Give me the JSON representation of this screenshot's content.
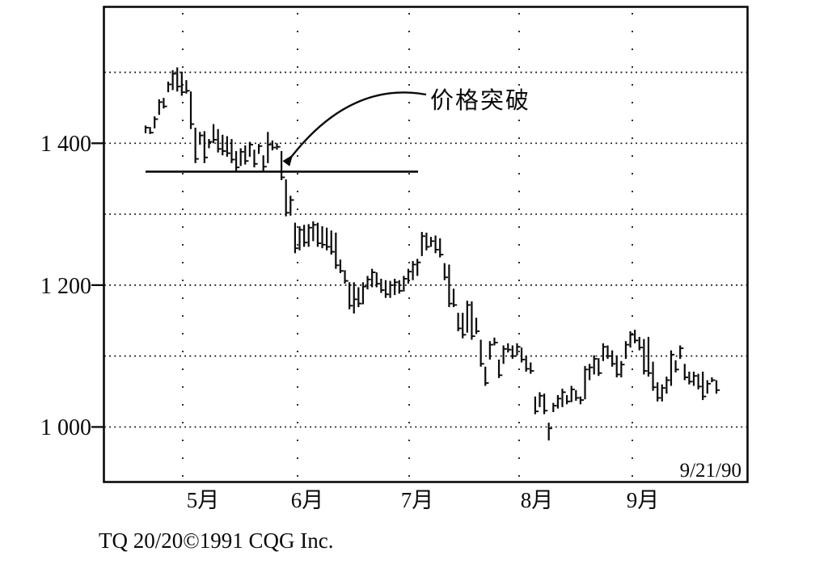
{
  "page": {
    "background": "#ffffff",
    "ink": "#0a0a0a"
  },
  "annotation": {
    "label": "价格突破",
    "points_to": "bar breaking below the support line"
  },
  "date_stamp": "9/21/90",
  "credit": "TQ 20/20©1991 CQG Inc.",
  "y_axis": {
    "labels": [
      {
        "value": 1400,
        "text": "1 400"
      },
      {
        "value": 1200,
        "text": "1 200"
      },
      {
        "value": 1000,
        "text": "1 000"
      }
    ]
  },
  "x_axis": {
    "labels": [
      {
        "text": "5月"
      },
      {
        "text": "6月"
      },
      {
        "text": "7月"
      },
      {
        "text": "8月"
      },
      {
        "text": "9月"
      }
    ]
  },
  "chart_data": {
    "type": "bar",
    "subtype": "hlc-daily-price-bars",
    "title": "",
    "xlabel": "",
    "ylabel": "",
    "categories": [
      "5月",
      "6月",
      "7月",
      "8月",
      "9月"
    ],
    "ylim": [
      921,
      1593
    ],
    "y_gridlines": [
      1500,
      1400,
      1300,
      1200,
      1100,
      1000
    ],
    "grid": "dotted",
    "support_line": {
      "value": 1360,
      "label": "价格突破"
    },
    "date_stamp": "9/21/90",
    "credit": "TQ 20/20©1991 CQG Inc.",
    "bars_format": [
      "high",
      "low",
      "close"
    ],
    "bars": [
      [
        1425,
        1414,
        1422
      ],
      [
        1423,
        1413,
        1415
      ],
      [
        1438,
        1421,
        1434
      ],
      [
        1462,
        1440,
        1458
      ],
      [
        1464,
        1449,
        1452
      ],
      [
        1487,
        1472,
        1483
      ],
      [
        1503,
        1475,
        1498
      ],
      [
        1507,
        1473,
        1480
      ],
      [
        1501,
        1467,
        1472
      ],
      [
        1489,
        1470,
        1474
      ],
      [
        1473,
        1420,
        1427
      ],
      [
        1422,
        1372,
        1378
      ],
      [
        1416,
        1398,
        1411
      ],
      [
        1417,
        1372,
        1380
      ],
      [
        1406,
        1393,
        1402
      ],
      [
        1427,
        1400,
        1405
      ],
      [
        1420,
        1387,
        1392
      ],
      [
        1412,
        1383,
        1389
      ],
      [
        1410,
        1381,
        1386
      ],
      [
        1406,
        1372,
        1377
      ],
      [
        1389,
        1361,
        1366
      ],
      [
        1393,
        1368,
        1388
      ],
      [
        1397,
        1370,
        1375
      ],
      [
        1402,
        1381,
        1398
      ],
      [
        1391,
        1366,
        1371
      ],
      [
        1399,
        1385,
        1396
      ],
      [
        1383,
        1361,
        1367
      ],
      [
        1416,
        1372,
        1398
      ],
      [
        1404,
        1390,
        1394
      ],
      [
        1400,
        1391,
        1395
      ],
      [
        1389,
        1348,
        1352
      ],
      [
        1349,
        1297,
        1302
      ],
      [
        1326,
        1298,
        1320
      ],
      [
        1288,
        1245,
        1252
      ],
      [
        1283,
        1249,
        1278
      ],
      [
        1285,
        1254,
        1260
      ],
      [
        1286,
        1254,
        1281
      ],
      [
        1290,
        1262,
        1285
      ],
      [
        1288,
        1254,
        1259
      ],
      [
        1283,
        1252,
        1257
      ],
      [
        1281,
        1249,
        1254
      ],
      [
        1277,
        1243,
        1247
      ],
      [
        1274,
        1223,
        1228
      ],
      [
        1236,
        1217,
        1220
      ],
      [
        1221,
        1202,
        1206
      ],
      [
        1204,
        1166,
        1171
      ],
      [
        1204,
        1160,
        1180
      ],
      [
        1197,
        1169,
        1174
      ],
      [
        1204,
        1173,
        1198
      ],
      [
        1213,
        1194,
        1208
      ],
      [
        1223,
        1197,
        1218
      ],
      [
        1218,
        1197,
        1202
      ],
      [
        1209,
        1189,
        1193
      ],
      [
        1207,
        1182,
        1187
      ],
      [
        1206,
        1182,
        1200
      ],
      [
        1209,
        1186,
        1204
      ],
      [
        1207,
        1188,
        1192
      ],
      [
        1213,
        1191,
        1209
      ],
      [
        1223,
        1202,
        1219
      ],
      [
        1234,
        1207,
        1229
      ],
      [
        1237,
        1213,
        1232
      ],
      [
        1275,
        1241,
        1269
      ],
      [
        1274,
        1249,
        1254
      ],
      [
        1268,
        1254,
        1262
      ],
      [
        1270,
        1245,
        1250
      ],
      [
        1266,
        1239,
        1243
      ],
      [
        1231,
        1207,
        1211
      ],
      [
        1229,
        1169,
        1174
      ],
      [
        1195,
        1169,
        1172
      ],
      [
        1161,
        1135,
        1139
      ],
      [
        1161,
        1125,
        1130
      ],
      [
        1178,
        1133,
        1172
      ],
      [
        1177,
        1123,
        1128
      ],
      [
        1154,
        1131,
        1135
      ],
      [
        1123,
        1085,
        1089
      ],
      [
        1085,
        1058,
        1062
      ],
      [
        1121,
        1095,
        1116
      ],
      [
        1126,
        1115,
        1119
      ],
      [
        1095,
        1069,
        1073
      ],
      [
        1115,
        1089,
        1110
      ],
      [
        1118,
        1105,
        1109
      ],
      [
        1115,
        1096,
        1100
      ],
      [
        1118,
        1101,
        1113
      ],
      [
        1112,
        1091,
        1095
      ],
      [
        1101,
        1078,
        1082
      ],
      [
        1091,
        1075,
        1079
      ],
      [
        1043,
        1018,
        1022
      ],
      [
        1049,
        1028,
        1044
      ],
      [
        1047,
        1018,
        1023
      ],
      [
        1006,
        981,
        998
      ],
      [
        1034,
        1021,
        1030
      ],
      [
        1045,
        1026,
        1040
      ],
      [
        1054,
        1028,
        1049
      ],
      [
        1045,
        1032,
        1036
      ],
      [
        1058,
        1035,
        1053
      ],
      [
        1052,
        1037,
        1041
      ],
      [
        1043,
        1032,
        1038
      ],
      [
        1086,
        1039,
        1081
      ],
      [
        1089,
        1066,
        1084
      ],
      [
        1101,
        1074,
        1096
      ],
      [
        1097,
        1072,
        1076
      ],
      [
        1118,
        1093,
        1113
      ],
      [
        1115,
        1096,
        1100
      ],
      [
        1108,
        1085,
        1089
      ],
      [
        1101,
        1070,
        1074
      ],
      [
        1093,
        1070,
        1088
      ],
      [
        1121,
        1096,
        1116
      ],
      [
        1135,
        1112,
        1130
      ],
      [
        1137,
        1118,
        1122
      ],
      [
        1127,
        1108,
        1112
      ],
      [
        1124,
        1074,
        1079
      ],
      [
        1127,
        1071,
        1076
      ],
      [
        1092,
        1051,
        1056
      ],
      [
        1063,
        1036,
        1041
      ],
      [
        1060,
        1036,
        1055
      ],
      [
        1071,
        1047,
        1066
      ],
      [
        1108,
        1058,
        1102
      ],
      [
        1094,
        1077,
        1081
      ],
      [
        1115,
        1096,
        1111
      ],
      [
        1089,
        1066,
        1070
      ],
      [
        1078,
        1060,
        1064
      ],
      [
        1078,
        1058,
        1072
      ],
      [
        1075,
        1053,
        1057
      ],
      [
        1078,
        1038,
        1043
      ],
      [
        1066,
        1047,
        1061
      ],
      [
        1070,
        1063,
        1066
      ],
      [
        1066,
        1047,
        1052
      ]
    ]
  }
}
